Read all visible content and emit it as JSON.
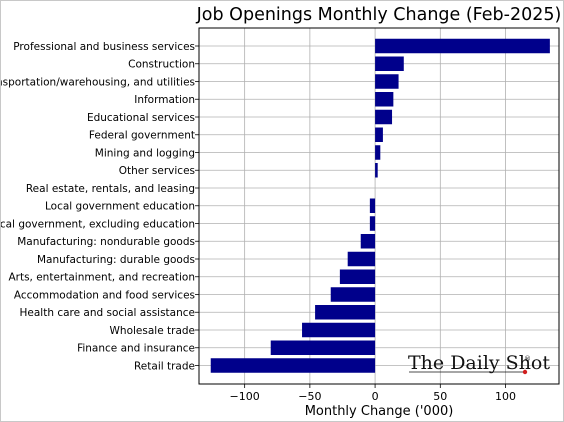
{
  "chart_data": {
    "type": "bar",
    "orientation": "horizontal",
    "title": "Job Openings Monthly Change (Feb-2025)",
    "xlabel": "Monthly Change ('000)",
    "ylabel": "",
    "xlim": [
      -135,
      141
    ],
    "xticks": [
      -100,
      -50,
      0,
      50,
      100
    ],
    "xtick_labels": [
      "−100",
      "−50",
      "0",
      "50",
      "100"
    ],
    "grid": true,
    "bar_color": "#00008b",
    "categories": [
      "Professional and business services",
      "Construction",
      "Transportation/warehousing, and utilities",
      "Information",
      "Educational services",
      "Federal government",
      "Mining and logging",
      "Other services",
      "Real estate, rentals, and leasing",
      "Local government education",
      "Local government, excluding education",
      "Manufacturing: nondurable goods",
      "Manufacturing: durable goods",
      "Arts, entertainment, and recreation",
      "Accommodation and food services",
      "Health care and social assistance",
      "Wholesale trade",
      "Finance and insurance",
      "Retail trade"
    ],
    "values": [
      134,
      22,
      18,
      14,
      13,
      6,
      4,
      2,
      0,
      -4,
      -4,
      -11,
      -21,
      -27,
      -34,
      -46,
      -56,
      -80,
      -126
    ]
  },
  "watermark": {
    "text": "The Daily Shot",
    "mark": "®",
    "accent_color": "#d11f1f"
  }
}
